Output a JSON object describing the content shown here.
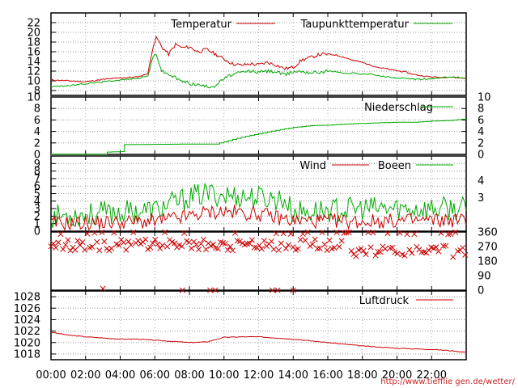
{
  "chart_data": {
    "type": "line",
    "x_ticks": [
      "00:00",
      "02:00",
      "04:00",
      "06:00",
      "08:00",
      "10:00",
      "12:00",
      "14:00",
      "16:00",
      "18:00",
      "20:00",
      "22:00"
    ],
    "x_range_hours": [
      0,
      24
    ],
    "credit": "http://www.tiefflie gen.de/wetter/",
    "colors": {
      "red": "#cc0000",
      "green": "#00aa00",
      "grid": "#888888"
    },
    "panels": [
      {
        "id": "temperature",
        "ylim": [
          7,
          24
        ],
        "yticks": [
          8,
          10,
          12,
          14,
          16,
          18,
          20,
          22
        ],
        "series": [
          {
            "name": "Temperatur",
            "color": "#cc0000",
            "points": [
              [
                0,
                10.2
              ],
              [
                1,
                10.0
              ],
              [
                2,
                9.8
              ],
              [
                3,
                10.3
              ],
              [
                4,
                10.6
              ],
              [
                5,
                10.8
              ],
              [
                5.6,
                11.5
              ],
              [
                5.9,
                17.0
              ],
              [
                6.1,
                19.0
              ],
              [
                6.4,
                17.0
              ],
              [
                6.8,
                15.5
              ],
              [
                7.2,
                17.5
              ],
              [
                7.6,
                16.8
              ],
              [
                8.0,
                17.0
              ],
              [
                8.5,
                16.0
              ],
              [
                9.0,
                16.5
              ],
              [
                9.5,
                15.5
              ],
              [
                10,
                14.5
              ],
              [
                10.5,
                13.5
              ],
              [
                11,
                13.2
              ],
              [
                11.5,
                13.5
              ],
              [
                12,
                13.3
              ],
              [
                12.5,
                13.8
              ],
              [
                13,
                13.3
              ],
              [
                13.5,
                12.5
              ],
              [
                14,
                12.8
              ],
              [
                14.5,
                14.3
              ],
              [
                15,
                14.8
              ],
              [
                15.5,
                15.4
              ],
              [
                16,
                15.5
              ],
              [
                16.5,
                15.3
              ],
              [
                17,
                14.8
              ],
              [
                17.5,
                14.2
              ],
              [
                18,
                13.8
              ],
              [
                18.5,
                13.2
              ],
              [
                19,
                12.7
              ],
              [
                19.5,
                12.4
              ],
              [
                20,
                12.1
              ],
              [
                20.5,
                11.8
              ],
              [
                21,
                11.3
              ],
              [
                21.5,
                11.0
              ],
              [
                22,
                10.8
              ],
              [
                22.5,
                10.7
              ],
              [
                23,
                10.8
              ],
              [
                24,
                10.5
              ]
            ]
          },
          {
            "name": "Taupunkttemperatur",
            "color": "#00aa00",
            "points": [
              [
                0,
                8.8
              ],
              [
                1,
                9.0
              ],
              [
                2,
                9.4
              ],
              [
                3,
                9.8
              ],
              [
                4,
                10.2
              ],
              [
                5,
                10.5
              ],
              [
                5.6,
                11.0
              ],
              [
                5.9,
                15.0
              ],
              [
                6.1,
                15.5
              ],
              [
                6.4,
                12.0
              ],
              [
                7,
                11.0
              ],
              [
                7.5,
                10.0
              ],
              [
                8,
                9.5
              ],
              [
                8.5,
                9.2
              ],
              [
                9,
                8.8
              ],
              [
                9.5,
                9.0
              ],
              [
                10,
                10.5
              ],
              [
                10.5,
                11.3
              ],
              [
                11,
                11.7
              ],
              [
                11.5,
                12.0
              ],
              [
                12,
                11.8
              ],
              [
                12.5,
                12.0
              ],
              [
                13,
                11.9
              ],
              [
                13.5,
                11.2
              ],
              [
                14,
                11.9
              ],
              [
                14.5,
                12.0
              ],
              [
                15,
                11.7
              ],
              [
                15.5,
                11.8
              ],
              [
                16,
                12.0
              ],
              [
                16.5,
                11.9
              ],
              [
                17,
                11.5
              ],
              [
                17.5,
                11.6
              ],
              [
                18,
                11.4
              ],
              [
                18.5,
                11.4
              ],
              [
                19,
                11.0
              ],
              [
                19.5,
                10.8
              ],
              [
                20,
                10.6
              ],
              [
                21,
                10.3
              ],
              [
                22,
                10.4
              ],
              [
                23,
                10.8
              ],
              [
                24,
                10.6
              ]
            ]
          }
        ]
      },
      {
        "id": "precipitation",
        "ylim": [
          0,
          10
        ],
        "yticks": [
          0,
          2,
          4,
          6,
          8,
          10
        ],
        "series": [
          {
            "name": "Niederschlag",
            "color": "#00aa00",
            "points": [
              [
                0,
                0
              ],
              [
                3,
                0
              ],
              [
                3.2,
                0.4
              ],
              [
                4,
                0.5
              ],
              [
                4.2,
                1.7
              ],
              [
                8,
                1.8
              ],
              [
                9.5,
                1.8
              ],
              [
                10,
                2.2
              ],
              [
                11,
                3.0
              ],
              [
                12,
                3.6
              ],
              [
                13,
                4.2
              ],
              [
                14,
                4.7
              ],
              [
                15,
                5.0
              ],
              [
                16,
                5.1
              ],
              [
                17,
                5.3
              ],
              [
                18,
                5.4
              ],
              [
                19,
                5.5
              ],
              [
                20,
                5.6
              ],
              [
                21,
                5.6
              ],
              [
                22,
                5.8
              ],
              [
                23,
                5.9
              ],
              [
                24,
                6.2
              ]
            ]
          }
        ]
      },
      {
        "id": "wind",
        "ylim": [
          0,
          10
        ],
        "yticks": [
          0,
          1,
          2,
          3,
          4,
          5,
          6,
          7,
          8,
          9
        ],
        "right_ticks": [
          "3",
          "4"
        ],
        "series": [
          {
            "name": "Wind",
            "color": "#cc0000",
            "profile": [
              [
                0,
                1.0
              ],
              [
                6,
                1.3
              ],
              [
                8,
                2.0
              ],
              [
                9,
                2.5
              ],
              [
                10,
                2.6
              ],
              [
                12,
                2.3
              ],
              [
                14,
                1.4
              ],
              [
                18,
                1.3
              ],
              [
                24,
                1.5
              ]
            ]
          },
          {
            "name": "Boeen",
            "color": "#00aa00",
            "profile": [
              [
                0,
                2.0
              ],
              [
                6,
                2.8
              ],
              [
                8,
                4.5
              ],
              [
                9,
                5.0
              ],
              [
                10,
                4.8
              ],
              [
                12,
                4.5
              ],
              [
                13.5,
                4.2
              ],
              [
                14,
                2.5
              ],
              [
                18,
                3.0
              ],
              [
                24,
                3.0
              ]
            ]
          }
        ]
      },
      {
        "id": "wind-direction",
        "ylim": [
          0,
          360
        ],
        "right_ticks": [
          "360",
          "270",
          "180",
          "90",
          "0"
        ],
        "scatter_color": "#cc0000"
      },
      {
        "id": "pressure",
        "ylim": [
          1017,
          1029
        ],
        "yticks": [
          1018,
          1020,
          1022,
          1024,
          1026,
          1028
        ],
        "series": [
          {
            "name": "Luftdruck",
            "color": "#cc0000",
            "points": [
              [
                0,
                1021.8
              ],
              [
                1,
                1021.3
              ],
              [
                2,
                1021.0
              ],
              [
                3,
                1020.8
              ],
              [
                4,
                1020.6
              ],
              [
                5,
                1020.6
              ],
              [
                6,
                1020.4
              ],
              [
                7,
                1020.2
              ],
              [
                8,
                1020.0
              ],
              [
                9,
                1020.1
              ],
              [
                9.5,
                1020.5
              ],
              [
                10,
                1020.9
              ],
              [
                11,
                1021.0
              ],
              [
                12,
                1021.0
              ],
              [
                13,
                1020.8
              ],
              [
                14,
                1020.6
              ],
              [
                15,
                1020.3
              ],
              [
                16,
                1020.0
              ],
              [
                17,
                1019.7
              ],
              [
                18,
                1019.4
              ],
              [
                19,
                1019.2
              ],
              [
                20,
                1019.0
              ],
              [
                21,
                1018.9
              ],
              [
                22,
                1018.8
              ],
              [
                23,
                1018.6
              ],
              [
                24,
                1018.3
              ]
            ]
          }
        ]
      }
    ]
  }
}
